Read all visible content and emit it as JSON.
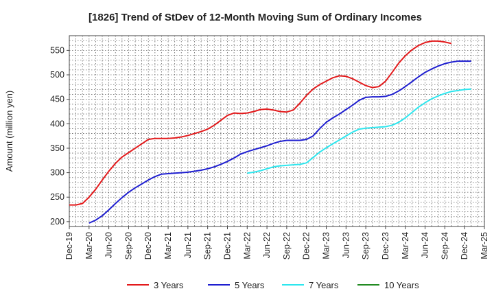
{
  "chart_data": {
    "type": "line",
    "title": "[1826]  Trend of StDev of 12-Month Moving Sum of Ordinary Incomes",
    "ylabel": "Amount (million yen)",
    "xlabel": "",
    "ylim": [
      190,
      580
    ],
    "yticks": [
      200,
      250,
      300,
      350,
      400,
      450,
      500,
      550
    ],
    "x_tick_labels": [
      "Dec-19",
      "Mar-20",
      "Jun-20",
      "Sep-20",
      "Dec-20",
      "Mar-21",
      "Jun-21",
      "Sep-21",
      "Dec-21",
      "Mar-22",
      "Jun-22",
      "Sep-22",
      "Dec-22",
      "Mar-23",
      "Jun-23",
      "Sep-23",
      "Dec-23",
      "Mar-24",
      "Jun-24",
      "Sep-24",
      "Dec-24",
      "Mar-25"
    ],
    "grid": true,
    "legend_position": "bottom",
    "series": [
      {
        "name": "3 Years",
        "color": "#e31a1c",
        "start_index": 0,
        "values": [
          234,
          234,
          237,
          250,
          266,
          285,
          303,
          319,
          332,
          341,
          350,
          359,
          368,
          370,
          370,
          370,
          371,
          373,
          376,
          380,
          384,
          389,
          397,
          407,
          417,
          422,
          421,
          422,
          425,
          429,
          430,
          428,
          425,
          424,
          428,
          442,
          458,
          471,
          480,
          487,
          494,
          498,
          497,
          492,
          485,
          478,
          474,
          476,
          487,
          505,
          524,
          539,
          551,
          560,
          566,
          569,
          569,
          567,
          564
        ]
      },
      {
        "name": "5 Years",
        "color": "#1f1fd0",
        "start_index": 3,
        "values": [
          197,
          203,
          212,
          224,
          237,
          249,
          260,
          269,
          277,
          285,
          292,
          297,
          298,
          299,
          300,
          301,
          303,
          305,
          308,
          312,
          317,
          323,
          330,
          338,
          343,
          347,
          351,
          355,
          360,
          364,
          366,
          366,
          366,
          368,
          375,
          390,
          403,
          412,
          420,
          429,
          438,
          448,
          454,
          455,
          455,
          456,
          460,
          467,
          476,
          486,
          496,
          505,
          512,
          518,
          523,
          526,
          528,
          528,
          528
        ]
      },
      {
        "name": "7 Years",
        "color": "#2ee6ee",
        "start_index": 27,
        "values": [
          299,
          301,
          304,
          308,
          312,
          314,
          315,
          316,
          317,
          320,
          331,
          342,
          351,
          359,
          367,
          375,
          383,
          389,
          391,
          392,
          393,
          394,
          397,
          403,
          412,
          423,
          434,
          443,
          451,
          457,
          462,
          466,
          468,
          470,
          471
        ]
      },
      {
        "name": "10 Years",
        "color": "#228b22",
        "start_index": 0,
        "values": []
      }
    ]
  }
}
